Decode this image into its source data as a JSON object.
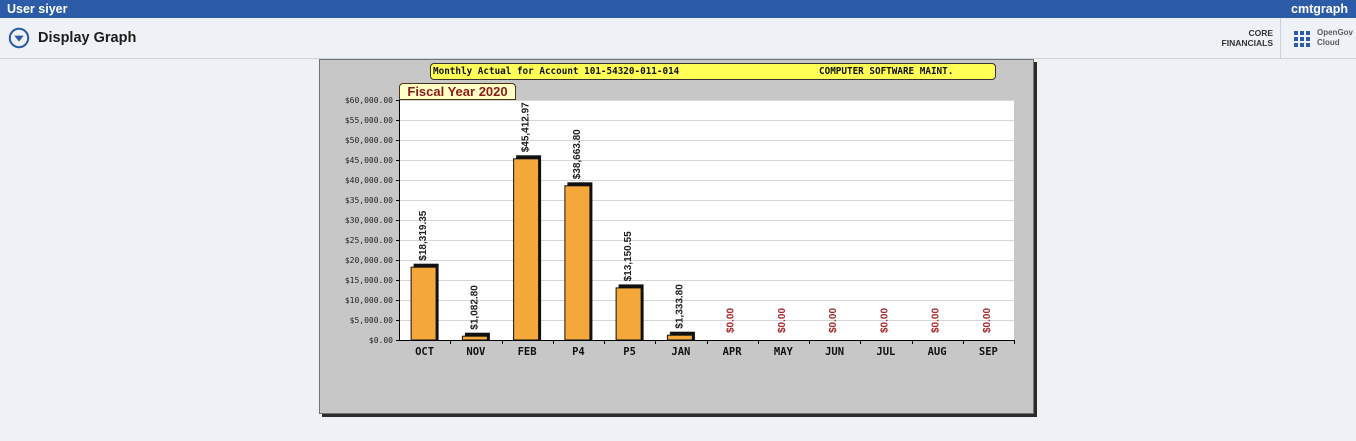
{
  "topbar": {
    "user_label": "User siyer",
    "program_code": "cmtgraph"
  },
  "header": {
    "title": "Display Graph",
    "product_line1": "CORE",
    "product_line2": "FINANCIALS",
    "brand_line1": "OpenGov",
    "brand_line2": "Cloud"
  },
  "icons": {
    "page_menu": "circle-chevron-down-icon",
    "app_launcher": "app-grid-icon"
  },
  "colors": {
    "topbar_bg": "#2c5ca8",
    "page_bg": "#eef1f5",
    "accent": "#2b5ba8"
  },
  "chart_data": {
    "type": "bar",
    "title": "Monthly Actual for Account 101-54320-011-014",
    "account_description": "COMPUTER SOFTWARE MAINT.",
    "categories": [
      "OCT",
      "NOV",
      "FEB",
      "P4",
      "P5",
      "JAN",
      "APR",
      "MAY",
      "JUN",
      "JUL",
      "AUG",
      "SEP"
    ],
    "series": [
      {
        "name": "Fiscal Year 2020",
        "values": [
          18319.35,
          1082.8,
          45412.97,
          38663.8,
          13150.55,
          1333.8,
          0,
          0,
          0,
          0,
          0,
          0
        ]
      }
    ],
    "value_labels": [
      "$18,319.35",
      "$1,082.80",
      "$45,412.97",
      "$38,663.80",
      "$13,150.55",
      "$1,333.80",
      "$0.00",
      "$0.00",
      "$0.00",
      "$0.00",
      "$0.00",
      "$0.00"
    ],
    "ylim": [
      0,
      60000
    ],
    "y_ticks": [
      0,
      5000,
      10000,
      15000,
      20000,
      25000,
      30000,
      35000,
      40000,
      45000,
      50000,
      55000,
      60000
    ],
    "y_tick_labels": [
      "$0.00",
      "$5,000.00",
      "$10,000.00",
      "$15,000.00",
      "$20,000.00",
      "$25,000.00",
      "$30,000.00",
      "$35,000.00",
      "$40,000.00",
      "$45,000.00",
      "$50,000.00",
      "$55,000.00",
      "$60,000.00"
    ],
    "grid": true,
    "legend": "top-left",
    "colors": {
      "panel_bg": "#c7c7c7",
      "plot_bg": "#ffffff",
      "title_bg": "#ffff55",
      "series_label_bg": "#ffffc6",
      "series_label_text": "#8c1b1b",
      "bar_fill": "#f4a83a",
      "bar_edge": "#111111",
      "value_label": "#1e1e1e",
      "zero_value_label": "#a32b2b",
      "grid": "#d6d6d6",
      "axis": "#000000"
    }
  }
}
